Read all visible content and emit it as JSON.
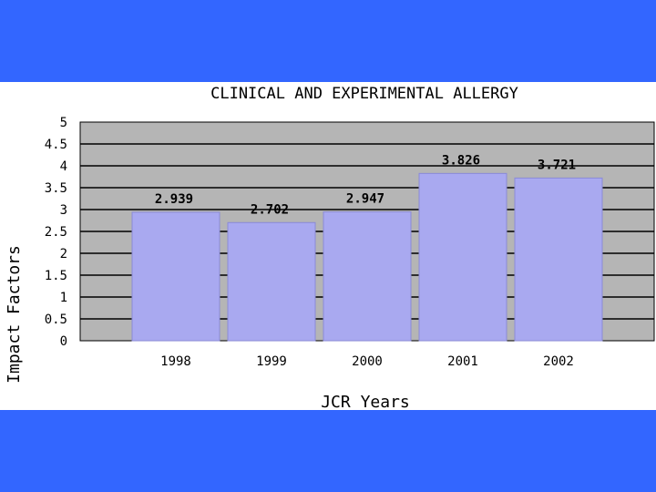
{
  "colors": {
    "band": "#3366ff",
    "plot_bg": "#b5b5b5",
    "grid": "#000000",
    "bar_fill": "#a9a9f0",
    "bar_stroke": "#8a8ad6"
  },
  "chart_data": {
    "type": "bar",
    "title": "CLINICAL AND EXPERIMENTAL ALLERGY",
    "xlabel": "JCR Years",
    "ylabel": "Impact Factors",
    "categories": [
      "1998",
      "1999",
      "2000",
      "2001",
      "2002"
    ],
    "values": [
      2.939,
      2.702,
      2.947,
      3.826,
      3.721
    ],
    "data_labels": [
      "2.939",
      "2.702",
      "2.947",
      "3.826",
      "3.721"
    ],
    "ylim": [
      0,
      5
    ],
    "yticks": [
      0,
      0.5,
      1,
      1.5,
      2,
      2.5,
      3,
      3.5,
      4,
      4.5,
      5
    ],
    "ytick_labels": [
      "0",
      "0.5",
      "1",
      "1.5",
      "2",
      "2.5",
      "3",
      "3.5",
      "4",
      "4.5",
      "5"
    ],
    "grid": true,
    "legend": "none"
  }
}
